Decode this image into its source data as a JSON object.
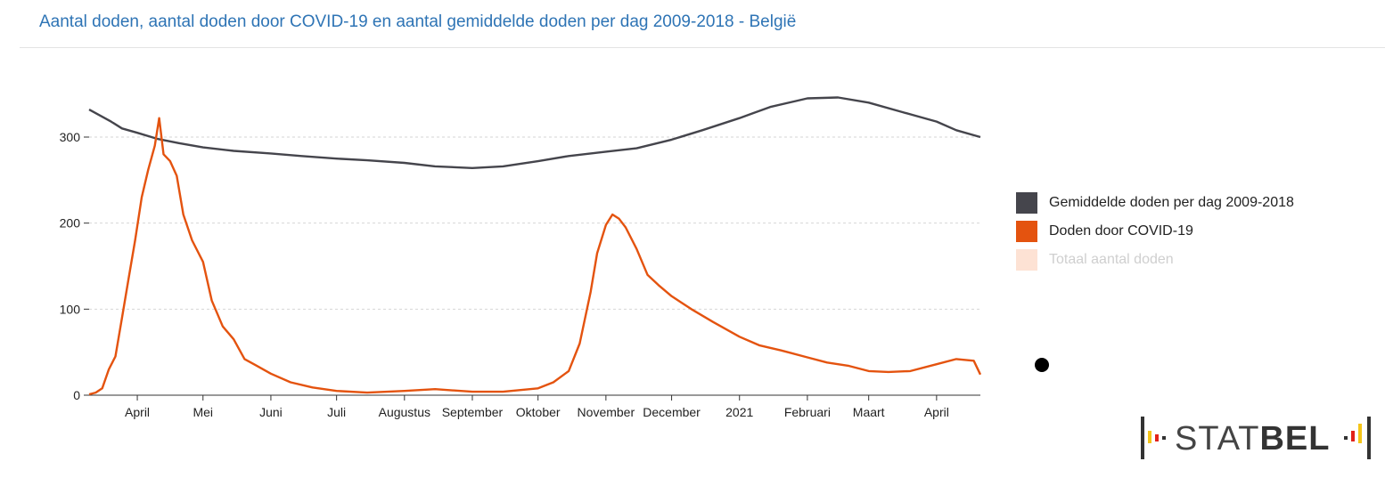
{
  "title": "Aantal doden, aantal doden door COVID-19 en aantal gemiddelde doden per dag 2009-2018 - België",
  "legend": [
    {
      "label": "Gemiddelde doden per dag 2009-2018",
      "color": "#45454c",
      "active": true
    },
    {
      "label": "Doden door COVID-19",
      "color": "#e4530f",
      "active": true
    },
    {
      "label": "Totaal aantal doden",
      "color": "#fde2d4",
      "active": false
    }
  ],
  "logo": {
    "text_light": "STAT",
    "text_bold": "BEL"
  },
  "chart_data": {
    "type": "line",
    "title": "Aantal doden, aantal doden door COVID-19 en aantal gemiddelde doden per dag 2009-2018 - België",
    "xlabel": "",
    "ylabel": "",
    "ylim": [
      0,
      360
    ],
    "yticks": [
      0,
      100,
      200,
      300
    ],
    "grid": true,
    "x_start": "2020-03-10",
    "x_end": "2021-04-21",
    "x_ticks": [
      {
        "label": "April",
        "date": "2020-04-01"
      },
      {
        "label": "Mei",
        "date": "2020-05-01"
      },
      {
        "label": "Juni",
        "date": "2020-06-01"
      },
      {
        "label": "Juli",
        "date": "2020-07-01"
      },
      {
        "label": "Augustus",
        "date": "2020-08-01"
      },
      {
        "label": "September",
        "date": "2020-09-01"
      },
      {
        "label": "Oktober",
        "date": "2020-10-01"
      },
      {
        "label": "November",
        "date": "2020-11-01"
      },
      {
        "label": "December",
        "date": "2020-12-01"
      },
      {
        "label": "2021",
        "date": "2021-01-01"
      },
      {
        "label": "Februari",
        "date": "2021-02-01"
      },
      {
        "label": "Maart",
        "date": "2021-03-01"
      },
      {
        "label": "April",
        "date": "2021-04-01"
      }
    ],
    "series": [
      {
        "name": "Gemiddelde doden per dag 2009-2018",
        "color": "#45454c",
        "points": [
          [
            "2020-03-10",
            332
          ],
          [
            "2020-03-15",
            325
          ],
          [
            "2020-03-20",
            318
          ],
          [
            "2020-03-25",
            310
          ],
          [
            "2020-04-01",
            305
          ],
          [
            "2020-04-10",
            298
          ],
          [
            "2020-04-20",
            293
          ],
          [
            "2020-05-01",
            288
          ],
          [
            "2020-05-15",
            284
          ],
          [
            "2020-06-01",
            281
          ],
          [
            "2020-06-15",
            278
          ],
          [
            "2020-07-01",
            275
          ],
          [
            "2020-07-15",
            273
          ],
          [
            "2020-08-01",
            270
          ],
          [
            "2020-08-15",
            266
          ],
          [
            "2020-09-01",
            264
          ],
          [
            "2020-09-15",
            266
          ],
          [
            "2020-10-01",
            272
          ],
          [
            "2020-10-15",
            278
          ],
          [
            "2020-11-01",
            283
          ],
          [
            "2020-11-15",
            287
          ],
          [
            "2020-12-01",
            297
          ],
          [
            "2020-12-15",
            308
          ],
          [
            "2021-01-01",
            322
          ],
          [
            "2021-01-15",
            335
          ],
          [
            "2021-02-01",
            345
          ],
          [
            "2021-02-15",
            346
          ],
          [
            "2021-03-01",
            340
          ],
          [
            "2021-03-15",
            330
          ],
          [
            "2021-04-01",
            318
          ],
          [
            "2021-04-10",
            308
          ],
          [
            "2021-04-21",
            300
          ]
        ]
      },
      {
        "name": "Doden door COVID-19",
        "color": "#e4530f",
        "points": [
          [
            "2020-03-10",
            1
          ],
          [
            "2020-03-13",
            3
          ],
          [
            "2020-03-16",
            8
          ],
          [
            "2020-03-19",
            30
          ],
          [
            "2020-03-22",
            45
          ],
          [
            "2020-03-25",
            90
          ],
          [
            "2020-03-28",
            135
          ],
          [
            "2020-03-31",
            180
          ],
          [
            "2020-04-03",
            230
          ],
          [
            "2020-04-06",
            262
          ],
          [
            "2020-04-09",
            290
          ],
          [
            "2020-04-11",
            322
          ],
          [
            "2020-04-13",
            280
          ],
          [
            "2020-04-16",
            272
          ],
          [
            "2020-04-19",
            255
          ],
          [
            "2020-04-22",
            210
          ],
          [
            "2020-04-26",
            180
          ],
          [
            "2020-05-01",
            155
          ],
          [
            "2020-05-05",
            110
          ],
          [
            "2020-05-10",
            80
          ],
          [
            "2020-05-15",
            65
          ],
          [
            "2020-05-20",
            42
          ],
          [
            "2020-05-25",
            35
          ],
          [
            "2020-06-01",
            25
          ],
          [
            "2020-06-10",
            15
          ],
          [
            "2020-06-20",
            9
          ],
          [
            "2020-07-01",
            5
          ],
          [
            "2020-07-15",
            3
          ],
          [
            "2020-08-01",
            5
          ],
          [
            "2020-08-15",
            7
          ],
          [
            "2020-09-01",
            4
          ],
          [
            "2020-09-15",
            4
          ],
          [
            "2020-10-01",
            8
          ],
          [
            "2020-10-08",
            15
          ],
          [
            "2020-10-15",
            28
          ],
          [
            "2020-10-20",
            60
          ],
          [
            "2020-10-25",
            120
          ],
          [
            "2020-10-28",
            165
          ],
          [
            "2020-11-01",
            198
          ],
          [
            "2020-11-04",
            210
          ],
          [
            "2020-11-07",
            205
          ],
          [
            "2020-11-10",
            195
          ],
          [
            "2020-11-15",
            170
          ],
          [
            "2020-11-20",
            140
          ],
          [
            "2020-11-25",
            128
          ],
          [
            "2020-12-01",
            115
          ],
          [
            "2020-12-10",
            100
          ],
          [
            "2020-12-20",
            85
          ],
          [
            "2021-01-01",
            68
          ],
          [
            "2021-01-10",
            58
          ],
          [
            "2021-01-20",
            52
          ],
          [
            "2021-02-01",
            44
          ],
          [
            "2021-02-10",
            38
          ],
          [
            "2021-02-20",
            34
          ],
          [
            "2021-03-01",
            28
          ],
          [
            "2021-03-10",
            27
          ],
          [
            "2021-03-20",
            28
          ],
          [
            "2021-04-01",
            36
          ],
          [
            "2021-04-10",
            42
          ],
          [
            "2021-04-18",
            40
          ],
          [
            "2021-04-21",
            24
          ]
        ]
      }
    ]
  }
}
